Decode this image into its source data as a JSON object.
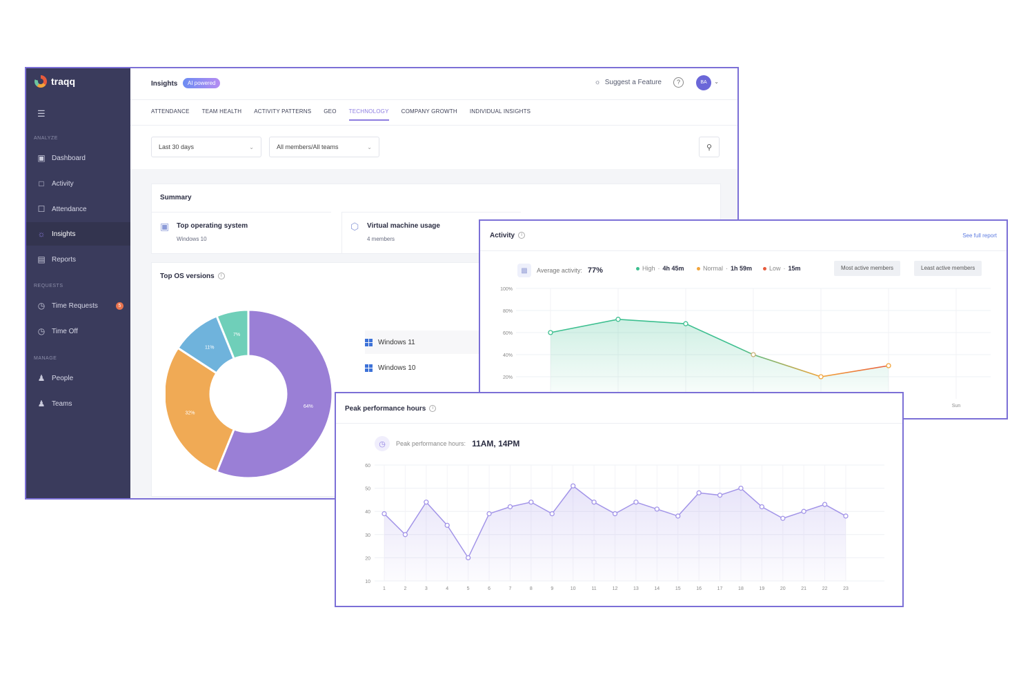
{
  "app": {
    "logo_text": "traqq",
    "title": "Insights",
    "ai_badge": "AI powered",
    "suggest_label": "Suggest a Feature",
    "help_label": "?",
    "avatar_initials": "BA"
  },
  "sidebar": {
    "sections": [
      {
        "label": "ANALYZE"
      },
      {
        "label": "REQUESTS"
      },
      {
        "label": "MANAGE"
      }
    ],
    "items": [
      {
        "label": "Dashboard",
        "icon": "dashboard-icon"
      },
      {
        "label": "Activity",
        "icon": "activity-icon"
      },
      {
        "label": "Attendance",
        "icon": "attendance-icon"
      },
      {
        "label": "Insights",
        "icon": "insights-icon",
        "active": true
      },
      {
        "label": "Reports",
        "icon": "reports-icon"
      },
      {
        "label": "Time Requests",
        "icon": "time-requests-icon",
        "badge": "5"
      },
      {
        "label": "Time Off",
        "icon": "time-off-icon"
      },
      {
        "label": "People",
        "icon": "people-icon"
      },
      {
        "label": "Teams",
        "icon": "teams-icon"
      }
    ]
  },
  "tabs": [
    {
      "label": "ATTENDANCE"
    },
    {
      "label": "TEAM HEALTH"
    },
    {
      "label": "ACTIVITY PATTERNS"
    },
    {
      "label": "GEO"
    },
    {
      "label": "TECHNOLOGY",
      "active": true
    },
    {
      "label": "COMPANY GROWTH"
    },
    {
      "label": "INDIVIDUAL INSIGHTS"
    }
  ],
  "filters": {
    "period": "Last 30 days",
    "members": "All members/All teams"
  },
  "summary": {
    "title": "Summary",
    "items": [
      {
        "title": "Top operating system",
        "value": "Windows 10"
      },
      {
        "title": "Virtual machine usage",
        "value": "4 members"
      }
    ]
  },
  "os_versions": {
    "title": "Top OS versions",
    "legend": [
      "Windows 11",
      "Windows 10"
    ]
  },
  "activity": {
    "title": "Activity",
    "see_full": "See full report",
    "avg_label": "Average activity:",
    "avg_value": "77%",
    "legend": [
      {
        "label": "High",
        "value": "4h 45m",
        "color": "#3cbf8f"
      },
      {
        "label": "Normal",
        "value": "1h 59m",
        "color": "#f2a43a"
      },
      {
        "label": "Low",
        "value": "15m",
        "color": "#e75b3c"
      }
    ],
    "buttons": [
      "Most active members",
      "Least active members"
    ]
  },
  "peak": {
    "title": "Peak performance hours",
    "label": "Peak performance hours:",
    "value": "11AM, 14PM"
  },
  "chart_data": [
    {
      "type": "pie",
      "title": "Top OS versions",
      "categories": [
        "",
        "",
        "",
        ""
      ],
      "values": [
        64,
        32,
        11,
        7
      ],
      "labels": [
        "64%",
        "32%",
        "11%",
        "7%"
      ],
      "colors": [
        "#9a7fd6",
        "#f0aa55",
        "#6fb3dc",
        "#6fcfb9"
      ]
    },
    {
      "type": "line",
      "title": "Activity",
      "ylim": [
        0,
        100
      ],
      "y_ticks": [
        "100%",
        "80%",
        "60%",
        "40%",
        "20%"
      ],
      "x_tick_labels": [
        "Sun"
      ],
      "values": [
        60,
        72,
        68,
        40,
        20,
        30
      ]
    },
    {
      "type": "line",
      "title": "Peak performance hours",
      "ylim": [
        10,
        60
      ],
      "y_ticks": [
        60,
        50,
        40,
        30,
        20,
        10
      ],
      "x": [
        1,
        2,
        3,
        4,
        5,
        6,
        7,
        8,
        9,
        10,
        11,
        12,
        13,
        14,
        15,
        16,
        17,
        18,
        19,
        20,
        21,
        22,
        23
      ],
      "values": [
        39,
        30,
        44,
        34,
        20,
        39,
        42,
        44,
        39,
        51,
        44,
        39,
        44,
        41,
        38,
        48,
        47,
        50,
        42,
        37,
        40,
        43,
        38
      ],
      "color": "#a294e8"
    }
  ]
}
